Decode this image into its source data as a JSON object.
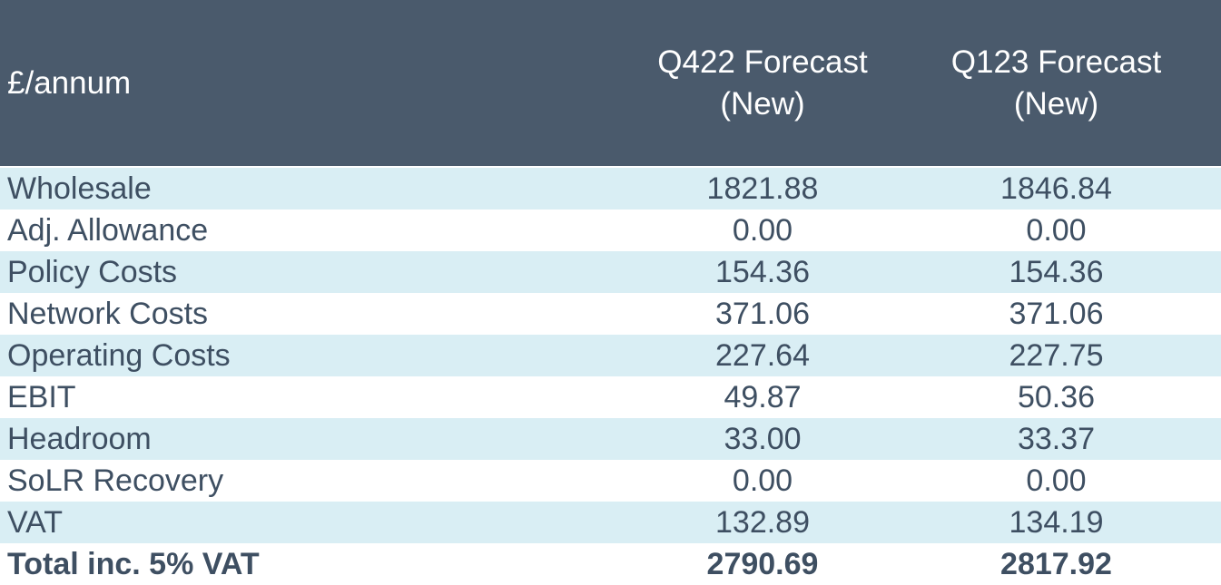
{
  "table": {
    "header": [
      [
        "£/annum"
      ],
      [
        "Q422 Forecast",
        "(New)"
      ],
      [
        "Q123 Forecast",
        "(New)"
      ]
    ],
    "rows": [
      [
        "Wholesale",
        "1821.88",
        "1846.84"
      ],
      [
        "Adj. Allowance",
        "0.00",
        "0.00"
      ],
      [
        "Policy Costs",
        "154.36",
        "154.36"
      ],
      [
        "Network Costs",
        "371.06",
        "371.06"
      ],
      [
        "Operating Costs",
        "227.64",
        "227.75"
      ],
      [
        "EBIT",
        "49.87",
        "50.36"
      ],
      [
        "Headroom",
        "33.00",
        "33.37"
      ],
      [
        "SoLR Recovery",
        "0.00",
        "0.00"
      ],
      [
        "VAT",
        "132.89",
        "134.19"
      ],
      [
        "Total inc. 5% VAT",
        "2790.69",
        "2817.92"
      ]
    ]
  }
}
